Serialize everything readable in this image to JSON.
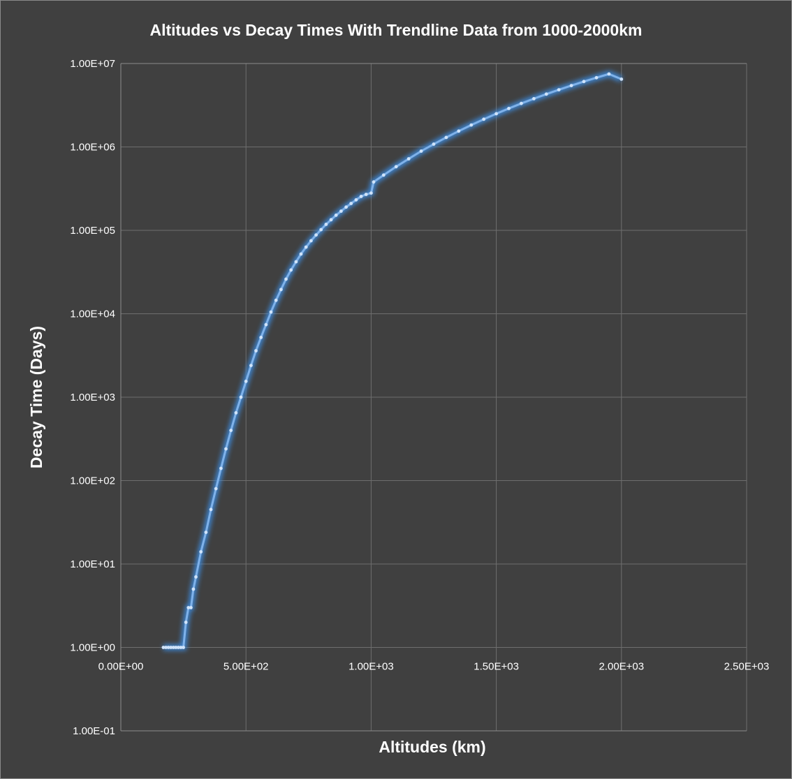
{
  "chart_data": {
    "type": "line",
    "title": "Altitudes vs Decay Times With Trendline Data from 1000-2000km",
    "xlabel": "Altitudes (km)",
    "ylabel": "Decay Time (Days)",
    "xlim": [
      0,
      2500
    ],
    "ylim": [
      0.1,
      10000000
    ],
    "yscale": "log",
    "grid": true,
    "legend": "none",
    "x_ticks": [
      "0.00E+00",
      "5.00E+02",
      "1.00E+03",
      "1.50E+03",
      "2.00E+03",
      "2.50E+03"
    ],
    "x_tick_values": [
      0,
      500,
      1000,
      1500,
      2000,
      2500
    ],
    "y_ticks": [
      "1.00E+07",
      "1.00E+06",
      "1.00E+05",
      "1.00E+04",
      "1.00E+03",
      "1.00E+02",
      "1.00E+01",
      "1.00E+00",
      "1.00E-01"
    ],
    "y_tick_values": [
      10000000,
      1000000,
      100000,
      10000,
      1000,
      100,
      10,
      1,
      0.1
    ],
    "series": [
      {
        "color": "#7fb2ea",
        "x": [
          170,
          180,
          190,
          200,
          210,
          220,
          230,
          240,
          250,
          260,
          270,
          280,
          290,
          300,
          320,
          340,
          360,
          380,
          400,
          420,
          440,
          460,
          480,
          500,
          520,
          540,
          560,
          580,
          600,
          620,
          640,
          660,
          680,
          700,
          720,
          740,
          760,
          780,
          800,
          820,
          840,
          860,
          880,
          900,
          920,
          940,
          960,
          980,
          1000,
          1010,
          1050,
          1100,
          1150,
          1200,
          1250,
          1300,
          1350,
          1400,
          1450,
          1500,
          1550,
          1600,
          1650,
          1700,
          1750,
          1800,
          1850,
          1900,
          1950,
          2000
        ],
        "y": [
          1,
          1,
          1,
          1,
          1,
          1,
          1,
          1,
          1,
          2,
          3,
          3,
          5,
          7,
          14,
          24,
          45,
          80,
          140,
          240,
          400,
          650,
          1000,
          1550,
          2400,
          3600,
          5200,
          7400,
          10500,
          14500,
          19500,
          26000,
          33500,
          42000,
          52000,
          63000,
          75000,
          88000,
          102000,
          118000,
          134000,
          152000,
          170000,
          190000,
          210000,
          232000,
          255000,
          270000,
          280000,
          380000,
          460000,
          580000,
          720000,
          890000,
          1080000,
          1300000,
          1550000,
          1830000,
          2150000,
          2500000,
          2890000,
          3320000,
          3790000,
          4300000,
          4850000,
          5440000,
          6080000,
          6760000,
          7490000,
          6500000
        ]
      }
    ]
  }
}
